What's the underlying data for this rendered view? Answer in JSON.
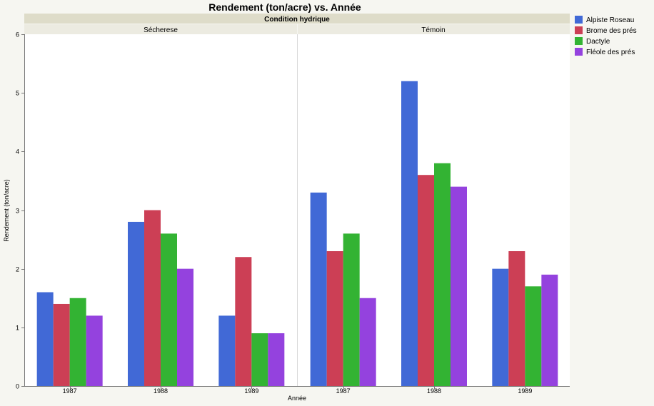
{
  "chart_data": {
    "type": "bar",
    "title": "Rendement (ton/acre) vs. Année",
    "xlabel": "Année",
    "ylabel": "Rendement (ton/acre)",
    "facet_title": "Condition hydrique",
    "facets": [
      "Sécherese",
      "Témoin"
    ],
    "categories": [
      "1987",
      "1988",
      "1989"
    ],
    "ylim": [
      0,
      6
    ],
    "yticks": [
      0,
      1,
      2,
      3,
      4,
      5,
      6
    ],
    "legend_position": "right",
    "series": [
      {
        "name": "Alpiste Roseau",
        "color": "#4169d6",
        "values": {
          "Sécherese": [
            1.6,
            2.8,
            1.2
          ],
          "Témoin": [
            3.3,
            5.2,
            2.0
          ]
        }
      },
      {
        "name": "Brome des prés",
        "color": "#cc3f55",
        "values": {
          "Sécherese": [
            1.4,
            3.0,
            2.2
          ],
          "Témoin": [
            2.3,
            3.6,
            2.3
          ]
        }
      },
      {
        "name": "Dactyle",
        "color": "#33b333",
        "values": {
          "Sécherese": [
            1.5,
            2.6,
            0.9
          ],
          "Témoin": [
            2.6,
            3.8,
            1.7
          ]
        }
      },
      {
        "name": "Fléole des prés",
        "color": "#9442de",
        "values": {
          "Sécherese": [
            1.2,
            2.0,
            0.9
          ],
          "Témoin": [
            1.5,
            3.4,
            1.9
          ]
        }
      }
    ]
  }
}
